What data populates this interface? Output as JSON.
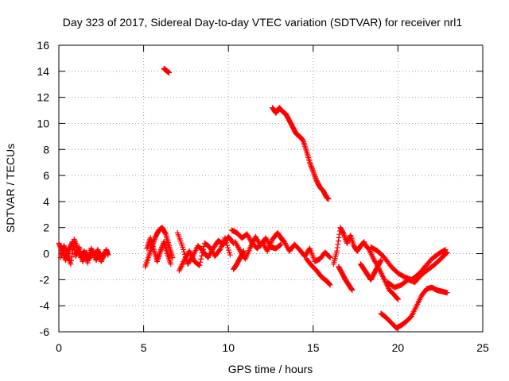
{
  "chart_data": {
    "type": "scatter",
    "title": "Day 323 of 2017, Sidereal Day-to-day VTEC variation (SDTVAR) for receiver nrl1",
    "xlabel": "GPS time / hours",
    "ylabel": "SDTVAR / TECUs",
    "xlim": [
      0,
      25
    ],
    "ylim": [
      -6,
      16
    ],
    "x_ticks": [
      0,
      5,
      10,
      15,
      20,
      25
    ],
    "y_ticks": [
      -6,
      -4,
      -2,
      0,
      2,
      4,
      6,
      8,
      10,
      12,
      14,
      16
    ],
    "grid": true,
    "marker": "+",
    "marker_color": "#ff0000",
    "segments": [
      {
        "name": "cluster-0-3h",
        "x": [
          0.0,
          0.2,
          0.4,
          0.6,
          0.8,
          1.0,
          1.2,
          1.4,
          1.6,
          1.8,
          2.0,
          2.2,
          2.4,
          2.6,
          2.8,
          2.9
        ],
        "y": [
          0.8,
          0.2,
          -0.5,
          0.3,
          0.9,
          -0.2,
          0.5,
          -0.6,
          0.1,
          -0.4,
          0.2,
          -0.5,
          0.0,
          -0.3,
          0.3,
          -0.1
        ]
      },
      {
        "name": "cluster-0-3h-b",
        "x": [
          0.1,
          0.3,
          0.5,
          0.7,
          0.9,
          1.1,
          1.3,
          1.5,
          1.7,
          1.9,
          2.1,
          2.3,
          2.5,
          2.7
        ],
        "y": [
          -0.3,
          0.6,
          0.0,
          -0.8,
          1.1,
          0.4,
          -0.3,
          0.2,
          -0.7,
          0.4,
          -0.2,
          0.3,
          -0.6,
          0.1
        ]
      },
      {
        "name": "arc-5-7h",
        "x": [
          5.1,
          5.3,
          5.5,
          5.7,
          5.9,
          6.1,
          6.3,
          6.5,
          6.7
        ],
        "y": [
          -1.0,
          -0.2,
          0.6,
          1.3,
          1.8,
          2.0,
          1.5,
          0.6,
          -0.3
        ]
      },
      {
        "name": "arc-5-7h-b",
        "x": [
          5.2,
          5.4,
          5.6,
          5.8,
          6.0,
          6.2,
          6.4,
          6.6
        ],
        "y": [
          0.4,
          1.2,
          0.3,
          -0.6,
          0.2,
          0.9,
          0.0,
          -0.8
        ]
      },
      {
        "name": "high-14",
        "x": [
          6.2,
          6.3,
          6.4,
          6.5
        ],
        "y": [
          14.2,
          14.1,
          14.0,
          13.9
        ]
      },
      {
        "name": "band-7-10h",
        "x": [
          7.0,
          7.3,
          7.6,
          7.9,
          8.2,
          8.5,
          8.8,
          9.1,
          9.4,
          9.7,
          10.0,
          10.3
        ],
        "y": [
          1.6,
          0.5,
          -0.8,
          -0.2,
          0.6,
          0.2,
          -0.3,
          0.4,
          1.0,
          0.7,
          1.3,
          0.8
        ]
      },
      {
        "name": "band-7-10h-b",
        "x": [
          7.1,
          7.4,
          7.7,
          8.0,
          8.3,
          8.6,
          8.9,
          9.2,
          9.5,
          9.8,
          10.1
        ],
        "y": [
          -1.3,
          -0.5,
          0.2,
          -0.6,
          -0.9,
          0.8,
          0.5,
          -0.2,
          0.3,
          1.2,
          -0.1
        ]
      },
      {
        "name": "drop-10-11h",
        "x": [
          10.3,
          10.5,
          10.7,
          10.9
        ],
        "y": [
          -1.2,
          -0.8,
          -0.3,
          0.2
        ]
      },
      {
        "name": "band-10-13h",
        "x": [
          10.2,
          10.5,
          10.8,
          11.1,
          11.4,
          11.7,
          12.0,
          12.3,
          12.6,
          12.9,
          13.2
        ],
        "y": [
          1.8,
          1.6,
          1.2,
          1.5,
          0.8,
          0.4,
          0.9,
          0.2,
          1.1,
          1.6,
          1.0
        ]
      },
      {
        "name": "band-10-13h-b",
        "x": [
          10.4,
          10.7,
          11.0,
          11.3,
          11.6,
          11.9,
          12.2,
          12.5,
          12.8,
          13.1
        ],
        "y": [
          0.9,
          0.2,
          -0.4,
          0.5,
          1.3,
          0.6,
          1.2,
          0.5,
          0.4,
          0.7
        ]
      },
      {
        "name": "descending-track",
        "x": [
          12.6,
          12.8,
          13.0,
          13.2,
          13.4,
          13.6,
          13.8,
          14.0,
          14.2,
          14.4,
          14.6,
          14.8,
          15.0,
          15.2,
          15.4,
          15.6,
          15.8,
          15.9
        ],
        "y": [
          11.2,
          10.8,
          11.2,
          10.9,
          10.7,
          10.2,
          9.7,
          9.2,
          9.0,
          8.7,
          7.9,
          7.0,
          6.3,
          5.6,
          5.1,
          4.8,
          4.3,
          4.2
        ]
      },
      {
        "name": "band-13-16h",
        "x": [
          13.0,
          13.3,
          13.6,
          13.9,
          14.2,
          14.5,
          14.8,
          15.1,
          15.4,
          15.7,
          16.0
        ],
        "y": [
          1.4,
          0.9,
          0.2,
          0.7,
          0.3,
          -0.2,
          0.4,
          -0.6,
          -0.4,
          0.1,
          -0.3
        ]
      },
      {
        "name": "trend-15-16h",
        "x": [
          14.6,
          14.9,
          15.2,
          15.5,
          15.8,
          16.0
        ],
        "y": [
          -0.4,
          -0.9,
          -1.3,
          -1.8,
          -2.1,
          -2.4
        ]
      },
      {
        "name": "arc-16-18h",
        "x": [
          16.2,
          16.4,
          16.6,
          16.8,
          17.0,
          17.2,
          17.4,
          17.6,
          17.8,
          18.0
        ],
        "y": [
          -0.8,
          0.2,
          2.0,
          1.5,
          0.8,
          1.4,
          0.6,
          0.2,
          0.6,
          0.9
        ]
      },
      {
        "name": "tail-16-17h",
        "x": [
          16.5,
          16.7,
          16.9,
          17.1,
          17.3
        ],
        "y": [
          -1.0,
          -1.5,
          -2.0,
          -2.4,
          -2.8
        ]
      },
      {
        "name": "band-18-20h",
        "x": [
          18.0,
          18.3,
          18.6,
          18.9,
          19.2,
          19.5,
          19.8,
          20.0
        ],
        "y": [
          0.8,
          0.3,
          -0.5,
          -1.2,
          -2.0,
          -2.8,
          -3.2,
          -3.5
        ]
      },
      {
        "name": "steady-18-20h",
        "x": [
          17.8,
          18.0,
          18.2,
          18.4,
          18.6,
          18.8,
          19.0
        ],
        "y": [
          -0.8,
          -1.2,
          -1.6,
          -2.0,
          -1.5,
          -1.0,
          -0.5
        ]
      },
      {
        "name": "rise-18-23h",
        "x": [
          18.4,
          18.8,
          19.2,
          19.6,
          20.0,
          20.4,
          20.8,
          21.2,
          21.6,
          22.0,
          22.4,
          22.8
        ],
        "y": [
          0.5,
          0.2,
          -0.3,
          -1.0,
          -1.5,
          -1.8,
          -2.0,
          -1.6,
          -1.0,
          -0.4,
          0.0,
          0.3
        ]
      },
      {
        "name": "mid-19-23h",
        "x": [
          19.4,
          19.8,
          20.2,
          20.6,
          21.0,
          21.4,
          21.8,
          22.2,
          22.6,
          22.9
        ],
        "y": [
          -2.2,
          -2.6,
          -2.4,
          -2.0,
          -2.2,
          -1.6,
          -1.2,
          -0.8,
          -0.3,
          0.1
        ]
      },
      {
        "name": "trough-19-23h",
        "x": [
          19.0,
          19.3,
          19.6,
          19.9,
          20.2,
          20.5,
          20.8,
          21.1,
          21.4,
          21.7,
          22.0,
          22.3,
          22.6,
          22.9
        ],
        "y": [
          -4.6,
          -4.9,
          -5.3,
          -5.7,
          -5.5,
          -5.2,
          -4.8,
          -4.0,
          -3.2,
          -2.7,
          -2.6,
          -2.8,
          -2.9,
          -3.0
        ]
      }
    ]
  }
}
